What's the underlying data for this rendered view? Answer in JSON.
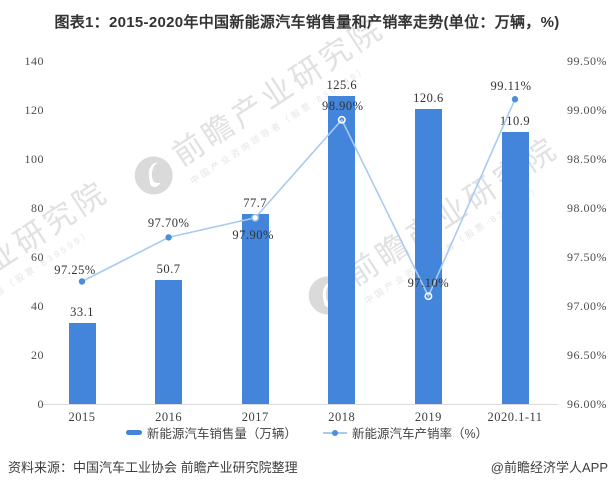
{
  "title": "图表1：2015-2020年中国新能源汽车销售量和产销率走势(单位：万辆，%)",
  "source_line": "资料来源：中国汽车工业协会 前瞻产业研究院整理",
  "credit": "@前瞻经济学人APP",
  "watermark": {
    "text": "前瞻产业研究院",
    "subtext": "中国产业咨询领导者（股票·839599）"
  },
  "legend": [
    {
      "label": "新能源汽车销售量（万辆）"
    },
    {
      "label": "新能源汽车产销率（%）"
    }
  ],
  "colors": {
    "bar": "#4285DB",
    "line": "#A8CBF1",
    "dot": "#4A8FDB",
    "axis_line": "#DCDCDC",
    "watermark": "#E0E0E0"
  },
  "chart_data": {
    "type": "bar",
    "subtype": "combo bar + line, dual y-axis",
    "categories": [
      "2015",
      "2016",
      "2017",
      "2018",
      "2019",
      "2020.1-11"
    ],
    "series": [
      {
        "name": "新能源汽车销售量（万辆）",
        "type": "bar",
        "axis": "left",
        "values": [
          33.1,
          50.7,
          77.7,
          125.6,
          120.6,
          110.9
        ],
        "labels": [
          "33.1",
          "50.7",
          "77.7",
          "125.6",
          "120.6",
          "110.9"
        ]
      },
      {
        "name": "新能源汽车产销率（%）",
        "type": "line",
        "axis": "right",
        "values": [
          97.25,
          97.7,
          97.9,
          98.9,
          97.1,
          99.11
        ],
        "labels": [
          "97.25%",
          "97.70%",
          "97.90%",
          "98.90%",
          "97.10%",
          "99.11%"
        ]
      }
    ],
    "left_axis": {
      "min": 0,
      "max": 140,
      "step": 20,
      "ticks": [
        "0",
        "20",
        "40",
        "60",
        "80",
        "100",
        "120",
        "140"
      ]
    },
    "right_axis": {
      "min": 96,
      "max": 99.5,
      "step": 0.5,
      "ticks": [
        "96.00%",
        "96.50%",
        "97.00%",
        "97.50%",
        "98.00%",
        "98.50%",
        "99.00%",
        "99.50%"
      ]
    },
    "grid": false,
    "legend_position": "bottom"
  }
}
